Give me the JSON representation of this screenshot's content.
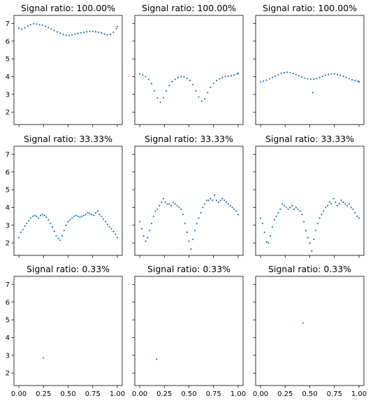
{
  "chart_data": {
    "type": "scatter",
    "layout": "3x3 grid, shared x and y axes",
    "xlim": [
      -0.05,
      1.05
    ],
    "ylim": [
      1.3,
      7.45
    ],
    "x_ticks": [
      "0.00",
      "0.25",
      "0.50",
      "0.75",
      "1.00"
    ],
    "x_tick_values": [
      0,
      0.25,
      0.5,
      0.75,
      1.0
    ],
    "y_ticks": [
      "2",
      "3",
      "4",
      "5",
      "6",
      "7"
    ],
    "y_tick_values": [
      2,
      3,
      4,
      5,
      6,
      7
    ],
    "marker_color": "#1f77b4",
    "grid": false,
    "panels": [
      {
        "title": "Signal ratio: 100.00%",
        "row": 0,
        "col": 0,
        "points": [
          [
            0.0,
            6.72
          ],
          [
            0.03,
            6.68
          ],
          [
            0.06,
            6.75
          ],
          [
            0.09,
            6.85
          ],
          [
            0.12,
            6.93
          ],
          [
            0.15,
            6.98
          ],
          [
            0.18,
            6.96
          ],
          [
            0.21,
            6.92
          ],
          [
            0.24,
            6.9
          ],
          [
            0.27,
            6.84
          ],
          [
            0.3,
            6.76
          ],
          [
            0.33,
            6.68
          ],
          [
            0.36,
            6.6
          ],
          [
            0.39,
            6.52
          ],
          [
            0.42,
            6.45
          ],
          [
            0.45,
            6.38
          ],
          [
            0.48,
            6.34
          ],
          [
            0.51,
            6.32
          ],
          [
            0.54,
            6.35
          ],
          [
            0.57,
            6.4
          ],
          [
            0.6,
            6.44
          ],
          [
            0.63,
            6.47
          ],
          [
            0.66,
            6.5
          ],
          [
            0.69,
            6.53
          ],
          [
            0.72,
            6.55
          ],
          [
            0.75,
            6.55
          ],
          [
            0.78,
            6.53
          ],
          [
            0.81,
            6.5
          ],
          [
            0.84,
            6.46
          ],
          [
            0.87,
            6.4
          ],
          [
            0.9,
            6.36
          ],
          [
            0.93,
            6.38
          ],
          [
            0.96,
            6.5
          ],
          [
            0.99,
            6.7
          ],
          [
            1.0,
            6.82
          ]
        ]
      },
      {
        "title": "Signal ratio: 100.00%",
        "row": 0,
        "col": 1,
        "points": [
          [
            0.0,
            4.15
          ],
          [
            0.03,
            4.1
          ],
          [
            0.06,
            4.0
          ],
          [
            0.09,
            3.85
          ],
          [
            0.12,
            3.6
          ],
          [
            0.15,
            3.2
          ],
          [
            0.18,
            2.8
          ],
          [
            0.21,
            2.55
          ],
          [
            0.24,
            2.8
          ],
          [
            0.27,
            3.2
          ],
          [
            0.3,
            3.5
          ],
          [
            0.33,
            3.72
          ],
          [
            0.36,
            3.85
          ],
          [
            0.39,
            3.95
          ],
          [
            0.42,
            4.0
          ],
          [
            0.45,
            3.98
          ],
          [
            0.48,
            3.9
          ],
          [
            0.51,
            3.78
          ],
          [
            0.54,
            3.55
          ],
          [
            0.57,
            3.2
          ],
          [
            0.6,
            2.85
          ],
          [
            0.63,
            2.62
          ],
          [
            0.66,
            2.75
          ],
          [
            0.69,
            3.1
          ],
          [
            0.72,
            3.4
          ],
          [
            0.75,
            3.62
          ],
          [
            0.78,
            3.78
          ],
          [
            0.81,
            3.88
          ],
          [
            0.84,
            3.95
          ],
          [
            0.87,
            4.0
          ],
          [
            0.9,
            4.02
          ],
          [
            0.93,
            4.05
          ],
          [
            0.96,
            4.1
          ],
          [
            0.99,
            4.15
          ],
          [
            1.0,
            4.2
          ]
        ]
      },
      {
        "title": "Signal ratio: 100.00%",
        "row": 0,
        "col": 2,
        "points": [
          [
            0.0,
            3.7
          ],
          [
            0.03,
            3.75
          ],
          [
            0.06,
            3.8
          ],
          [
            0.09,
            3.88
          ],
          [
            0.12,
            3.95
          ],
          [
            0.15,
            4.02
          ],
          [
            0.18,
            4.1
          ],
          [
            0.21,
            4.18
          ],
          [
            0.24,
            4.22
          ],
          [
            0.27,
            4.25
          ],
          [
            0.3,
            4.23
          ],
          [
            0.33,
            4.18
          ],
          [
            0.36,
            4.12
          ],
          [
            0.39,
            4.05
          ],
          [
            0.42,
            3.98
          ],
          [
            0.45,
            3.92
          ],
          [
            0.48,
            3.88
          ],
          [
            0.51,
            3.85
          ],
          [
            0.53,
            3.1
          ],
          [
            0.54,
            3.86
          ],
          [
            0.57,
            3.9
          ],
          [
            0.6,
            3.95
          ],
          [
            0.63,
            4.02
          ],
          [
            0.66,
            4.08
          ],
          [
            0.69,
            4.12
          ],
          [
            0.72,
            4.15
          ],
          [
            0.75,
            4.15
          ],
          [
            0.78,
            4.12
          ],
          [
            0.81,
            4.08
          ],
          [
            0.84,
            4.02
          ],
          [
            0.87,
            3.95
          ],
          [
            0.9,
            3.88
          ],
          [
            0.93,
            3.82
          ],
          [
            0.96,
            3.78
          ],
          [
            0.99,
            3.75
          ],
          [
            1.0,
            3.7
          ]
        ]
      },
      {
        "title": "Signal ratio: 33.33%",
        "row": 1,
        "col": 0,
        "points": [
          [
            0.0,
            2.3
          ],
          [
            0.02,
            2.6
          ],
          [
            0.04,
            2.75
          ],
          [
            0.06,
            2.95
          ],
          [
            0.08,
            3.1
          ],
          [
            0.1,
            3.25
          ],
          [
            0.12,
            3.4
          ],
          [
            0.14,
            3.5
          ],
          [
            0.16,
            3.55
          ],
          [
            0.18,
            3.5
          ],
          [
            0.2,
            3.4
          ],
          [
            0.22,
            3.55
          ],
          [
            0.24,
            3.6
          ],
          [
            0.26,
            3.55
          ],
          [
            0.28,
            3.45
          ],
          [
            0.3,
            3.3
          ],
          [
            0.32,
            3.1
          ],
          [
            0.34,
            2.9
          ],
          [
            0.36,
            2.65
          ],
          [
            0.38,
            2.4
          ],
          [
            0.4,
            2.25
          ],
          [
            0.42,
            2.15
          ],
          [
            0.44,
            2.4
          ],
          [
            0.46,
            2.7
          ],
          [
            0.48,
            3.0
          ],
          [
            0.5,
            3.2
          ],
          [
            0.52,
            3.3
          ],
          [
            0.54,
            3.4
          ],
          [
            0.56,
            3.5
          ],
          [
            0.58,
            3.55
          ],
          [
            0.6,
            3.5
          ],
          [
            0.62,
            3.45
          ],
          [
            0.64,
            3.5
          ],
          [
            0.66,
            3.55
          ],
          [
            0.68,
            3.6
          ],
          [
            0.7,
            3.7
          ],
          [
            0.72,
            3.65
          ],
          [
            0.74,
            3.6
          ],
          [
            0.76,
            3.55
          ],
          [
            0.78,
            3.7
          ],
          [
            0.8,
            3.8
          ],
          [
            0.82,
            3.6
          ],
          [
            0.84,
            3.5
          ],
          [
            0.86,
            3.35
          ],
          [
            0.88,
            3.2
          ],
          [
            0.9,
            3.05
          ],
          [
            0.92,
            2.9
          ],
          [
            0.94,
            2.8
          ],
          [
            0.96,
            2.65
          ],
          [
            0.98,
            2.5
          ],
          [
            1.0,
            2.3
          ]
        ]
      },
      {
        "title": "Signal ratio: 33.33%",
        "row": 1,
        "col": 1,
        "points": [
          [
            0.0,
            3.2
          ],
          [
            0.02,
            2.8
          ],
          [
            0.04,
            2.4
          ],
          [
            0.06,
            2.1
          ],
          [
            0.08,
            2.3
          ],
          [
            0.1,
            2.7
          ],
          [
            0.12,
            3.1
          ],
          [
            0.14,
            3.5
          ],
          [
            0.16,
            3.8
          ],
          [
            0.18,
            3.9
          ],
          [
            0.2,
            4.1
          ],
          [
            0.22,
            4.3
          ],
          [
            0.24,
            4.5
          ],
          [
            0.26,
            4.3
          ],
          [
            0.28,
            4.2
          ],
          [
            0.3,
            4.2
          ],
          [
            0.32,
            4.1
          ],
          [
            0.34,
            4.3
          ],
          [
            0.36,
            4.2
          ],
          [
            0.38,
            4.1
          ],
          [
            0.4,
            4.0
          ],
          [
            0.42,
            3.9
          ],
          [
            0.44,
            3.6
          ],
          [
            0.46,
            3.1
          ],
          [
            0.48,
            2.6
          ],
          [
            0.5,
            2.1
          ],
          [
            0.52,
            1.65
          ],
          [
            0.54,
            2.2
          ],
          [
            0.56,
            2.7
          ],
          [
            0.58,
            3.1
          ],
          [
            0.6,
            3.4
          ],
          [
            0.62,
            3.7
          ],
          [
            0.64,
            4.0
          ],
          [
            0.66,
            4.2
          ],
          [
            0.68,
            4.4
          ],
          [
            0.7,
            4.4
          ],
          [
            0.72,
            4.5
          ],
          [
            0.74,
            4.4
          ],
          [
            0.76,
            4.7
          ],
          [
            0.78,
            4.4
          ],
          [
            0.8,
            4.3
          ],
          [
            0.82,
            4.4
          ],
          [
            0.84,
            4.5
          ],
          [
            0.86,
            4.4
          ],
          [
            0.88,
            4.3
          ],
          [
            0.9,
            4.2
          ],
          [
            0.92,
            4.1
          ],
          [
            0.94,
            4.0
          ],
          [
            0.96,
            3.9
          ],
          [
            0.98,
            3.8
          ],
          [
            1.0,
            3.6
          ]
        ]
      },
      {
        "title": "Signal ratio: 33.33%",
        "row": 1,
        "col": 2,
        "points": [
          [
            0.0,
            3.4
          ],
          [
            0.02,
            3.1
          ],
          [
            0.04,
            2.6
          ],
          [
            0.06,
            2.05
          ],
          [
            0.08,
            2.0
          ],
          [
            0.1,
            2.4
          ],
          [
            0.12,
            2.9
          ],
          [
            0.14,
            3.3
          ],
          [
            0.16,
            3.5
          ],
          [
            0.18,
            3.7
          ],
          [
            0.2,
            3.9
          ],
          [
            0.22,
            4.2
          ],
          [
            0.24,
            4.1
          ],
          [
            0.26,
            4.0
          ],
          [
            0.28,
            3.9
          ],
          [
            0.3,
            4.0
          ],
          [
            0.32,
            4.1
          ],
          [
            0.34,
            3.9
          ],
          [
            0.36,
            4.0
          ],
          [
            0.38,
            3.9
          ],
          [
            0.4,
            3.8
          ],
          [
            0.42,
            3.6
          ],
          [
            0.44,
            3.2
          ],
          [
            0.46,
            2.7
          ],
          [
            0.48,
            2.3
          ],
          [
            0.5,
            2.0
          ],
          [
            0.52,
            1.55
          ],
          [
            0.54,
            2.2
          ],
          [
            0.56,
            2.7
          ],
          [
            0.58,
            3.1
          ],
          [
            0.6,
            3.4
          ],
          [
            0.62,
            3.6
          ],
          [
            0.64,
            3.8
          ],
          [
            0.66,
            4.0
          ],
          [
            0.68,
            4.1
          ],
          [
            0.7,
            4.3
          ],
          [
            0.72,
            4.2
          ],
          [
            0.74,
            4.5
          ],
          [
            0.76,
            4.3
          ],
          [
            0.78,
            4.1
          ],
          [
            0.8,
            4.2
          ],
          [
            0.82,
            4.4
          ],
          [
            0.84,
            4.3
          ],
          [
            0.86,
            4.2
          ],
          [
            0.88,
            4.1
          ],
          [
            0.9,
            4.2
          ],
          [
            0.92,
            4.0
          ],
          [
            0.94,
            3.9
          ],
          [
            0.96,
            3.7
          ],
          [
            0.98,
            3.5
          ],
          [
            1.0,
            3.4
          ]
        ]
      },
      {
        "title": "Signal ratio: 0.33%",
        "row": 2,
        "col": 0,
        "points": [
          [
            0.25,
            2.85
          ]
        ]
      },
      {
        "title": "Signal ratio: 0.33%",
        "row": 2,
        "col": 1,
        "points": [
          [
            0.17,
            2.78
          ]
        ]
      },
      {
        "title": "Signal ratio: 0.33%",
        "row": 2,
        "col": 2,
        "points": [
          [
            0.43,
            4.83
          ]
        ]
      }
    ]
  }
}
